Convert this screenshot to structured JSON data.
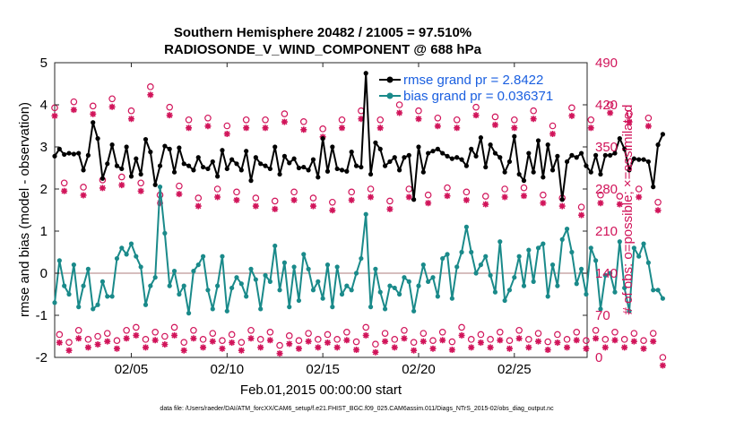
{
  "chart_data": {
    "type": "line",
    "title_line1": "Southern Hemisphere 20482 / 21005 = 97.510%",
    "title_line2": "RADIOSONDE_V_WIND_COMPONENT @ 688 hPa",
    "ylabel_left": "rmse and bias (model - observation)",
    "ylabel_right": "# of obs: o=possible; ×=assimilated",
    "xlabel": "Feb.01,2015 00:00:00 start",
    "footer": "data file: /Users/raeder/DAI/ATM_forcXX/CAM6_setup/f.e21.FHIST_BGC.f09_025.CAM6assim.011/Diags_NTrS_2015-02/obs_diag_output.nc",
    "ylim_left": [
      -2,
      5
    ],
    "ylim_right": [
      0,
      490
    ],
    "yticks_left": [
      "-2",
      "-1",
      "0",
      "1",
      "2",
      "3",
      "4",
      "5"
    ],
    "yticks_right": [
      "0",
      "70",
      "140",
      "210",
      "280",
      "350",
      "420",
      "490"
    ],
    "xlim_days": [
      1.0,
      28.8
    ],
    "xticks": [
      {
        "day": 5,
        "label": "02/05"
      },
      {
        "day": 10,
        "label": "02/10"
      },
      {
        "day": 15,
        "label": "02/15"
      },
      {
        "day": 20,
        "label": "02/20"
      },
      {
        "day": 25,
        "label": "02/25"
      }
    ],
    "x_start_day": 1.0,
    "x_step_days": 0.25,
    "zero_line": 0,
    "colors": {
      "rmse": "#000000",
      "bias": "#1a8a8a",
      "obs": "#d1145a",
      "zero": "#c8a8a8",
      "legend_text": "#1a5fe0"
    },
    "legend": [
      {
        "name": "rmse grand pr = 2.8422",
        "series": "rmse"
      },
      {
        "name": "bias grand pr = 0.036371",
        "series": "bias"
      }
    ],
    "series": [
      {
        "name": "rmse",
        "values": [
          2.78,
          2.95,
          2.82,
          2.85,
          2.83,
          2.85,
          2.45,
          2.8,
          3.58,
          3.2,
          2.25,
          2.6,
          3.05,
          2.55,
          2.48,
          3.0,
          2.3,
          2.72,
          2.35,
          3.18,
          2.88,
          2.1,
          2.55,
          3.02,
          2.95,
          2.4,
          2.98,
          2.6,
          2.55,
          2.45,
          2.75,
          2.52,
          2.48,
          2.65,
          2.3,
          2.92,
          2.48,
          2.7,
          2.6,
          2.45,
          2.9,
          2.2,
          2.75,
          2.6,
          2.55,
          2.48,
          3.0,
          2.35,
          2.78,
          2.62,
          2.72,
          2.5,
          2.52,
          2.45,
          2.7,
          2.28,
          3.2,
          2.42,
          3.0,
          2.48,
          2.45,
          2.42,
          2.88,
          2.55,
          2.52,
          4.75,
          2.35,
          3.1,
          2.95,
          2.55,
          2.65,
          2.75,
          2.45,
          2.75,
          2.8,
          1.75,
          3.0,
          2.4,
          2.85,
          2.9,
          2.95,
          2.85,
          2.78,
          2.72,
          2.75,
          2.7,
          2.55,
          2.95,
          2.78,
          3.22,
          2.52,
          3.05,
          2.85,
          2.75,
          2.4,
          2.65,
          3.25,
          2.35,
          2.2,
          2.85,
          2.4,
          3.15,
          2.28,
          3.05,
          2.45,
          2.78,
          1.75,
          2.65,
          2.8,
          2.75,
          2.85,
          2.55,
          2.4,
          2.8,
          2.35,
          2.8,
          2.8,
          2.85,
          3.2,
          2.95,
          2.45,
          2.72,
          2.7,
          2.7,
          2.65,
          2.05,
          3.05,
          3.3
        ]
      },
      {
        "name": "bias",
        "values": [
          -0.7,
          0.3,
          -0.3,
          -0.5,
          0.2,
          -0.8,
          -0.3,
          0.1,
          -0.85,
          -0.75,
          -0.2,
          -0.55,
          -0.55,
          0.35,
          0.6,
          0.45,
          0.7,
          0.4,
          0.15,
          -0.75,
          -0.3,
          -0.1,
          2.05,
          0.95,
          -0.3,
          0.05,
          -0.5,
          -0.3,
          -0.95,
          0.05,
          0.2,
          0.4,
          -0.4,
          -0.85,
          -0.3,
          0.4,
          -0.9,
          -0.35,
          -0.1,
          -0.25,
          -0.55,
          0.1,
          -0.15,
          -0.85,
          -0.05,
          -0.2,
          0.65,
          -0.4,
          0.25,
          -0.8,
          0.15,
          -0.65,
          0.45,
          0.1,
          -0.4,
          -0.2,
          -0.6,
          0.2,
          -0.8,
          0.15,
          -0.5,
          -0.3,
          -0.4,
          0.0,
          0.35,
          1.4,
          -0.8,
          0.1,
          -0.45,
          -0.85,
          -0.3,
          -0.35,
          -0.5,
          -0.1,
          -0.2,
          -0.9,
          -0.3,
          0.2,
          -0.2,
          -0.1,
          -0.55,
          0.35,
          0.45,
          -0.6,
          0.15,
          0.5,
          1.1,
          0.5,
          0.0,
          0.2,
          0.4,
          -0.05,
          -0.45,
          0.75,
          -0.65,
          -0.4,
          -0.1,
          0.4,
          -0.3,
          0.55,
          -0.2,
          0.6,
          0.7,
          -0.55,
          0.2,
          -0.3,
          0.8,
          1.05,
          0.5,
          -0.25,
          0.1,
          -0.5,
          0.6,
          0.3,
          -0.85,
          -0.05,
          0.0,
          -0.45,
          0.75,
          -0.35,
          -0.9,
          0.6,
          0.4,
          0.7,
          0.25,
          -0.4,
          -0.4,
          -0.6
        ]
      },
      {
        "name": "obs_possible",
        "values": [
          415,
          38,
          290,
          25,
          425,
          45,
          283,
          30,
          418,
          35,
          295,
          40,
          430,
          28,
          300,
          45,
          410,
          50,
          290,
          30,
          450,
          42,
          270,
          35,
          416,
          50,
          285,
          25,
          395,
          45,
          265,
          30,
          398,
          40,
          280,
          28,
          385,
          38,
          275,
          25,
          395,
          45,
          265,
          30,
          395,
          42,
          260,
          20,
          405,
          36,
          275,
          28,
          392,
          40,
          265,
          30,
          380,
          38,
          258,
          30,
          395,
          42,
          275,
          26,
          410,
          50,
          280,
          22,
          395,
          40,
          260,
          30,
          420,
          45,
          280,
          25,
          410,
          40,
          270,
          28,
          398,
          42,
          282,
          26,
          395,
          50,
          275,
          30,
          416,
          38,
          268,
          30,
          400,
          42,
          280,
          28,
          395,
          45,
          282,
          30,
          410,
          40,
          270,
          26,
          385,
          38,
          265,
          30,
          415,
          42,
          250,
          28,
          395,
          45,
          270,
          30,
          420,
          42,
          268,
          30,
          405,
          40,
          280,
          28,
          398,
          40,
          258,
          0
        ]
      }
    ]
  }
}
